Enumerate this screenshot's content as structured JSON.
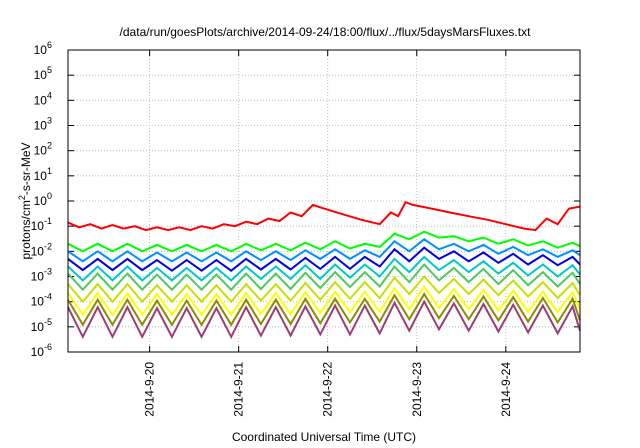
{
  "chart_data": {
    "type": "line",
    "title": "/data/run/goesPlots/archive/2014-09-24/18:00/flux/../flux/5daysMarsFluxes.txt",
    "xlabel": "Coordinated Universal Time (UTC)",
    "ylabel": "protons/cm²-s-sr-MeV",
    "y_scale": "log",
    "ylim": [
      1e-06,
      1000000.0
    ],
    "xlim": [
      "2014-09-19 02:00",
      "2014-09-24 20:00"
    ],
    "grid": true,
    "legend": "none",
    "y_ticks": [
      {
        "base": "10",
        "exp": "-6"
      },
      {
        "base": "10",
        "exp": "-5"
      },
      {
        "base": "10",
        "exp": "-4"
      },
      {
        "base": "10",
        "exp": "-3"
      },
      {
        "base": "10",
        "exp": "-2"
      },
      {
        "base": "10",
        "exp": "-1"
      },
      {
        "base": "10",
        "exp": "0"
      },
      {
        "base": "10",
        "exp": "1"
      },
      {
        "base": "10",
        "exp": "2"
      },
      {
        "base": "10",
        "exp": "3"
      },
      {
        "base": "10",
        "exp": "4"
      },
      {
        "base": "10",
        "exp": "5"
      },
      {
        "base": "10",
        "exp": "6"
      }
    ],
    "x_ticks": [
      "2014-9-20",
      "2014-9-21",
      "2014-9-22",
      "2014-9-23",
      "2014-9-24"
    ],
    "series": [
      {
        "color": "#ff0000",
        "width": 2,
        "x": [
          "2014-09-19 02:00",
          "2014-09-19 05:00",
          "2014-09-19 08:00",
          "2014-09-19 11:00",
          "2014-09-19 14:00",
          "2014-09-19 17:00",
          "2014-09-19 20:00",
          "2014-09-19 23:00",
          "2014-09-20 02:00",
          "2014-09-20 05:00",
          "2014-09-20 08:00",
          "2014-09-20 11:00",
          "2014-09-20 14:00",
          "2014-09-20 17:00",
          "2014-09-20 20:00",
          "2014-09-20 23:00",
          "2014-09-21 02:00",
          "2014-09-21 05:00",
          "2014-09-21 08:00",
          "2014-09-21 11:00",
          "2014-09-21 14:00",
          "2014-09-21 17:00",
          "2014-09-21 20:00",
          "2014-09-21 23:00",
          "2014-09-22 04:00",
          "2014-09-22 09:00",
          "2014-09-22 14:00",
          "2014-09-22 17:00",
          "2014-09-22 19:00",
          "2014-09-22 21:00",
          "2014-09-22 23:00",
          "2014-09-23 04:00",
          "2014-09-23 09:00",
          "2014-09-23 14:00",
          "2014-09-23 19:00",
          "2014-09-24 00:00",
          "2014-09-24 05:00",
          "2014-09-24 08:00",
          "2014-09-24 11:00",
          "2014-09-24 14:00",
          "2014-09-24 17:00",
          "2014-09-24 20:00"
        ],
        "y": [
          0.14,
          0.09,
          0.12,
          0.08,
          0.11,
          0.08,
          0.1,
          0.07,
          0.09,
          0.07,
          0.09,
          0.07,
          0.1,
          0.08,
          0.12,
          0.1,
          0.15,
          0.12,
          0.2,
          0.16,
          0.35,
          0.25,
          0.7,
          0.5,
          0.3,
          0.18,
          0.12,
          0.35,
          0.25,
          0.9,
          0.7,
          0.5,
          0.35,
          0.25,
          0.18,
          0.12,
          0.08,
          0.07,
          0.2,
          0.12,
          0.5,
          0.6
        ]
      },
      {
        "color": "#00ff00",
        "width": 2,
        "x": [
          "2014-09-19 02:00",
          "2014-09-19 06:00",
          "2014-09-19 10:00",
          "2014-09-19 14:00",
          "2014-09-19 18:00",
          "2014-09-19 22:00",
          "2014-09-20 02:00",
          "2014-09-20 06:00",
          "2014-09-20 10:00",
          "2014-09-20 14:00",
          "2014-09-20 18:00",
          "2014-09-20 22:00",
          "2014-09-21 02:00",
          "2014-09-21 06:00",
          "2014-09-21 10:00",
          "2014-09-21 14:00",
          "2014-09-21 18:00",
          "2014-09-21 22:00",
          "2014-09-22 02:00",
          "2014-09-22 06:00",
          "2014-09-22 10:00",
          "2014-09-22 14:00",
          "2014-09-22 18:00",
          "2014-09-22 22:00",
          "2014-09-23 02:00",
          "2014-09-23 06:00",
          "2014-09-23 10:00",
          "2014-09-23 14:00",
          "2014-09-23 18:00",
          "2014-09-23 22:00",
          "2014-09-24 02:00",
          "2014-09-24 06:00",
          "2014-09-24 10:00",
          "2014-09-24 14:00",
          "2014-09-24 18:00",
          "2014-09-24 20:00"
        ],
        "y": [
          0.02,
          0.01,
          0.02,
          0.01,
          0.02,
          0.01,
          0.018,
          0.01,
          0.018,
          0.01,
          0.018,
          0.01,
          0.02,
          0.011,
          0.02,
          0.011,
          0.022,
          0.012,
          0.025,
          0.013,
          0.02,
          0.015,
          0.05,
          0.03,
          0.06,
          0.035,
          0.04,
          0.025,
          0.035,
          0.02,
          0.03,
          0.017,
          0.025,
          0.014,
          0.022,
          0.016
        ]
      },
      {
        "color": "#0090ff",
        "width": 2,
        "x": [
          "2014-09-19 02:00",
          "2014-09-19 06:00",
          "2014-09-19 10:00",
          "2014-09-19 14:00",
          "2014-09-19 18:00",
          "2014-09-19 22:00",
          "2014-09-20 02:00",
          "2014-09-20 06:00",
          "2014-09-20 10:00",
          "2014-09-20 14:00",
          "2014-09-20 18:00",
          "2014-09-20 22:00",
          "2014-09-21 02:00",
          "2014-09-21 06:00",
          "2014-09-21 10:00",
          "2014-09-21 14:00",
          "2014-09-21 18:00",
          "2014-09-21 22:00",
          "2014-09-22 02:00",
          "2014-09-22 06:00",
          "2014-09-22 10:00",
          "2014-09-22 14:00",
          "2014-09-22 18:00",
          "2014-09-22 22:00",
          "2014-09-23 02:00",
          "2014-09-23 06:00",
          "2014-09-23 10:00",
          "2014-09-23 14:00",
          "2014-09-23 18:00",
          "2014-09-23 22:00",
          "2014-09-24 02:00",
          "2014-09-24 06:00",
          "2014-09-24 10:00",
          "2014-09-24 14:00",
          "2014-09-24 18:00",
          "2014-09-24 20:00"
        ],
        "y": [
          0.01,
          0.004,
          0.01,
          0.004,
          0.01,
          0.004,
          0.009,
          0.004,
          0.009,
          0.004,
          0.009,
          0.004,
          0.01,
          0.0045,
          0.01,
          0.0045,
          0.011,
          0.005,
          0.012,
          0.005,
          0.011,
          0.006,
          0.025,
          0.01,
          0.03,
          0.012,
          0.02,
          0.01,
          0.018,
          0.008,
          0.015,
          0.007,
          0.012,
          0.006,
          0.011,
          0.007
        ]
      },
      {
        "color": "#0000e0",
        "width": 2,
        "x": [
          "2014-09-19 02:00",
          "2014-09-19 06:00",
          "2014-09-19 10:00",
          "2014-09-19 14:00",
          "2014-09-19 18:00",
          "2014-09-19 22:00",
          "2014-09-20 02:00",
          "2014-09-20 06:00",
          "2014-09-20 10:00",
          "2014-09-20 14:00",
          "2014-09-20 18:00",
          "2014-09-20 22:00",
          "2014-09-21 02:00",
          "2014-09-21 06:00",
          "2014-09-21 10:00",
          "2014-09-21 14:00",
          "2014-09-21 18:00",
          "2014-09-21 22:00",
          "2014-09-22 02:00",
          "2014-09-22 06:00",
          "2014-09-22 10:00",
          "2014-09-22 14:00",
          "2014-09-22 18:00",
          "2014-09-22 22:00",
          "2014-09-23 02:00",
          "2014-09-23 06:00",
          "2014-09-23 10:00",
          "2014-09-23 14:00",
          "2014-09-23 18:00",
          "2014-09-23 22:00",
          "2014-09-24 02:00",
          "2014-09-24 06:00",
          "2014-09-24 10:00",
          "2014-09-24 14:00",
          "2014-09-24 18:00",
          "2014-09-24 20:00"
        ],
        "y": [
          0.005,
          0.0018,
          0.005,
          0.0018,
          0.005,
          0.0018,
          0.0045,
          0.0017,
          0.0045,
          0.0017,
          0.0045,
          0.0017,
          0.005,
          0.0019,
          0.005,
          0.0019,
          0.0055,
          0.002,
          0.006,
          0.002,
          0.006,
          0.0025,
          0.012,
          0.004,
          0.014,
          0.005,
          0.01,
          0.004,
          0.009,
          0.0035,
          0.008,
          0.003,
          0.007,
          0.0028,
          0.006,
          0.003
        ]
      },
      {
        "color": "#00c8c8",
        "width": 2,
        "x": [
          "2014-09-19 02:00",
          "2014-09-19 06:00",
          "2014-09-19 10:00",
          "2014-09-19 14:00",
          "2014-09-19 18:00",
          "2014-09-19 22:00",
          "2014-09-20 02:00",
          "2014-09-20 06:00",
          "2014-09-20 10:00",
          "2014-09-20 14:00",
          "2014-09-20 18:00",
          "2014-09-20 22:00",
          "2014-09-21 02:00",
          "2014-09-21 06:00",
          "2014-09-21 10:00",
          "2014-09-21 14:00",
          "2014-09-21 18:00",
          "2014-09-21 22:00",
          "2014-09-22 02:00",
          "2014-09-22 06:00",
          "2014-09-22 10:00",
          "2014-09-22 14:00",
          "2014-09-22 18:00",
          "2014-09-22 22:00",
          "2014-09-23 02:00",
          "2014-09-23 06:00",
          "2014-09-23 10:00",
          "2014-09-23 14:00",
          "2014-09-23 18:00",
          "2014-09-23 22:00",
          "2014-09-24 02:00",
          "2014-09-24 06:00",
          "2014-09-24 10:00",
          "2014-09-24 14:00",
          "2014-09-24 18:00",
          "2014-09-24 20:00"
        ],
        "y": [
          0.0025,
          0.0007,
          0.0025,
          0.0007,
          0.0025,
          0.0007,
          0.0022,
          0.0007,
          0.0022,
          0.0007,
          0.0022,
          0.0007,
          0.0025,
          0.0008,
          0.0025,
          0.0008,
          0.0028,
          0.0008,
          0.003,
          0.0009,
          0.003,
          0.001,
          0.005,
          0.0015,
          0.006,
          0.0018,
          0.0045,
          0.0015,
          0.004,
          0.0013,
          0.0035,
          0.0011,
          0.003,
          0.001,
          0.0028,
          0.0012
        ]
      },
      {
        "color": "#50c860",
        "width": 2,
        "x": [
          "2014-09-19 02:00",
          "2014-09-19 06:00",
          "2014-09-19 10:00",
          "2014-09-19 14:00",
          "2014-09-19 18:00",
          "2014-09-19 22:00",
          "2014-09-20 02:00",
          "2014-09-20 06:00",
          "2014-09-20 10:00",
          "2014-09-20 14:00",
          "2014-09-20 18:00",
          "2014-09-20 22:00",
          "2014-09-21 02:00",
          "2014-09-21 06:00",
          "2014-09-21 10:00",
          "2014-09-21 14:00",
          "2014-09-21 18:00",
          "2014-09-21 22:00",
          "2014-09-22 02:00",
          "2014-09-22 06:00",
          "2014-09-22 10:00",
          "2014-09-22 14:00",
          "2014-09-22 18:00",
          "2014-09-22 22:00",
          "2014-09-23 02:00",
          "2014-09-23 06:00",
          "2014-09-23 10:00",
          "2014-09-23 14:00",
          "2014-09-23 18:00",
          "2014-09-23 22:00",
          "2014-09-24 02:00",
          "2014-09-24 06:00",
          "2014-09-24 10:00",
          "2014-09-24 14:00",
          "2014-09-24 18:00",
          "2014-09-24 20:00"
        ],
        "y": [
          0.0013,
          0.0003,
          0.0013,
          0.0003,
          0.0013,
          0.0003,
          0.0012,
          0.0003,
          0.0012,
          0.0003,
          0.0012,
          0.0003,
          0.0013,
          0.00032,
          0.0013,
          0.00032,
          0.0014,
          0.00035,
          0.0015,
          0.00038,
          0.0015,
          0.0004,
          0.0025,
          0.0006,
          0.003,
          0.0007,
          0.0022,
          0.0006,
          0.002,
          0.0005,
          0.0018,
          0.00045,
          0.0015,
          0.0004,
          0.0014,
          0.0005
        ]
      },
      {
        "color": "#c8e000",
        "width": 2,
        "x": [
          "2014-09-19 02:00",
          "2014-09-19 06:00",
          "2014-09-19 10:00",
          "2014-09-19 14:00",
          "2014-09-19 18:00",
          "2014-09-19 22:00",
          "2014-09-20 02:00",
          "2014-09-20 06:00",
          "2014-09-20 10:00",
          "2014-09-20 14:00",
          "2014-09-20 18:00",
          "2014-09-20 22:00",
          "2014-09-21 02:00",
          "2014-09-21 06:00",
          "2014-09-21 10:00",
          "2014-09-21 14:00",
          "2014-09-21 18:00",
          "2014-09-21 22:00",
          "2014-09-22 02:00",
          "2014-09-22 06:00",
          "2014-09-22 10:00",
          "2014-09-22 14:00",
          "2014-09-22 18:00",
          "2014-09-22 22:00",
          "2014-09-23 02:00",
          "2014-09-23 06:00",
          "2014-09-23 10:00",
          "2014-09-23 14:00",
          "2014-09-23 18:00",
          "2014-09-23 22:00",
          "2014-09-24 02:00",
          "2014-09-24 06:00",
          "2014-09-24 10:00",
          "2014-09-24 14:00",
          "2014-09-24 18:00",
          "2014-09-24 20:00"
        ],
        "y": [
          0.0005,
          0.0001,
          0.0005,
          0.0001,
          0.0005,
          0.0001,
          0.00045,
          0.0001,
          0.00045,
          0.0001,
          0.00045,
          0.0001,
          0.0005,
          0.00011,
          0.0005,
          0.00011,
          0.00055,
          0.00012,
          0.0006,
          0.00013,
          0.0006,
          0.00014,
          0.0009,
          0.0002,
          0.001,
          0.00022,
          0.0008,
          0.0002,
          0.00075,
          0.00018,
          0.0007,
          0.00016,
          0.0006,
          0.00014,
          0.00055,
          0.00018
        ]
      },
      {
        "color": "#ffff00",
        "width": 2,
        "x": [
          "2014-09-19 02:00",
          "2014-09-19 06:00",
          "2014-09-19 10:00",
          "2014-09-19 14:00",
          "2014-09-19 18:00",
          "2014-09-19 22:00",
          "2014-09-20 02:00",
          "2014-09-20 06:00",
          "2014-09-20 10:00",
          "2014-09-20 14:00",
          "2014-09-20 18:00",
          "2014-09-20 22:00",
          "2014-09-21 02:00",
          "2014-09-21 06:00",
          "2014-09-21 10:00",
          "2014-09-21 14:00",
          "2014-09-21 18:00",
          "2014-09-21 22:00",
          "2014-09-22 02:00",
          "2014-09-22 06:00",
          "2014-09-22 10:00",
          "2014-09-22 14:00",
          "2014-09-22 18:00",
          "2014-09-22 22:00",
          "2014-09-23 02:00",
          "2014-09-23 06:00",
          "2014-09-23 10:00",
          "2014-09-23 14:00",
          "2014-09-23 18:00",
          "2014-09-23 22:00",
          "2014-09-24 02:00",
          "2014-09-24 06:00",
          "2014-09-24 10:00",
          "2014-09-24 14:00",
          "2014-09-24 18:00",
          "2014-09-24 20:00"
        ],
        "y": [
          0.00022,
          3e-05,
          0.00022,
          3e-05,
          0.00022,
          3e-05,
          0.0002,
          3e-05,
          0.0002,
          3e-05,
          0.0002,
          3e-05,
          0.00022,
          3.2e-05,
          0.00022,
          3.2e-05,
          0.00024,
          3.5e-05,
          0.00025,
          3.8e-05,
          0.00025,
          4e-05,
          0.00035,
          5e-05,
          0.0004,
          5.5e-05,
          0.00032,
          5e-05,
          0.0003,
          4.5e-05,
          0.00028,
          4e-05,
          0.00025,
          3.8e-05,
          0.00024,
          5e-05
        ]
      },
      {
        "color": "#8c8c00",
        "width": 2,
        "x": [
          "2014-09-19 02:00",
          "2014-09-19 06:00",
          "2014-09-19 10:00",
          "2014-09-19 14:00",
          "2014-09-19 18:00",
          "2014-09-19 22:00",
          "2014-09-20 02:00",
          "2014-09-20 06:00",
          "2014-09-20 10:00",
          "2014-09-20 14:00",
          "2014-09-20 18:00",
          "2014-09-20 22:00",
          "2014-09-21 02:00",
          "2014-09-21 06:00",
          "2014-09-21 10:00",
          "2014-09-21 14:00",
          "2014-09-21 18:00",
          "2014-09-21 22:00",
          "2014-09-22 02:00",
          "2014-09-22 06:00",
          "2014-09-22 10:00",
          "2014-09-22 14:00",
          "2014-09-22 18:00",
          "2014-09-22 22:00",
          "2014-09-23 02:00",
          "2014-09-23 06:00",
          "2014-09-23 10:00",
          "2014-09-23 14:00",
          "2014-09-23 18:00",
          "2014-09-23 22:00",
          "2014-09-24 02:00",
          "2014-09-24 06:00",
          "2014-09-24 10:00",
          "2014-09-24 14:00",
          "2014-09-24 18:00",
          "2014-09-24 20:00"
        ],
        "y": [
          0.00012,
          1.2e-05,
          0.00012,
          1.2e-05,
          0.00012,
          1.2e-05,
          0.00011,
          1.2e-05,
          0.00011,
          1.2e-05,
          0.00011,
          1.2e-05,
          0.00012,
          1.3e-05,
          0.00012,
          1.3e-05,
          0.00013,
          1.4e-05,
          0.00013,
          1.5e-05,
          0.00013,
          1.6e-05,
          0.00018,
          2e-05,
          0.0002,
          2.2e-05,
          0.00017,
          2e-05,
          0.00016,
          1.8e-05,
          0.00015,
          1.6e-05,
          0.00014,
          1.5e-05,
          0.00013,
          1.8e-05
        ]
      },
      {
        "color": "#9c3c78",
        "width": 2,
        "x": [
          "2014-09-19 02:00",
          "2014-09-19 06:00",
          "2014-09-19 10:00",
          "2014-09-19 14:00",
          "2014-09-19 18:00",
          "2014-09-19 22:00",
          "2014-09-20 02:00",
          "2014-09-20 06:00",
          "2014-09-20 10:00",
          "2014-09-20 14:00",
          "2014-09-20 18:00",
          "2014-09-20 22:00",
          "2014-09-21 02:00",
          "2014-09-21 06:00",
          "2014-09-21 10:00",
          "2014-09-21 14:00",
          "2014-09-21 18:00",
          "2014-09-21 22:00",
          "2014-09-22 02:00",
          "2014-09-22 06:00",
          "2014-09-22 10:00",
          "2014-09-22 14:00",
          "2014-09-22 18:00",
          "2014-09-22 22:00",
          "2014-09-23 02:00",
          "2014-09-23 06:00",
          "2014-09-23 10:00",
          "2014-09-23 14:00",
          "2014-09-23 18:00",
          "2014-09-23 22:00",
          "2014-09-24 02:00",
          "2014-09-24 06:00",
          "2014-09-24 10:00",
          "2014-09-24 14:00",
          "2014-09-24 18:00",
          "2014-09-24 20:00"
        ],
        "y": [
          6e-05,
          4e-06,
          6e-05,
          4e-06,
          6e-05,
          4e-06,
          5.5e-05,
          4e-06,
          5.5e-05,
          4e-06,
          5.5e-05,
          4e-06,
          6e-05,
          4.5e-06,
          6e-05,
          4.5e-06,
          6.5e-05,
          5e-06,
          7e-05,
          5e-06,
          7e-05,
          5.5e-06,
          9e-05,
          7e-06,
          0.0001,
          8e-06,
          8.5e-05,
          7e-06,
          8e-05,
          6.5e-06,
          7.5e-05,
          6e-06,
          7e-05,
          5.5e-06,
          6.5e-05,
          7e-06
        ]
      }
    ]
  }
}
